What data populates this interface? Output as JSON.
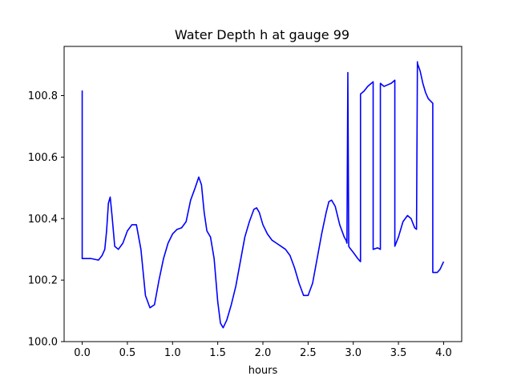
{
  "chart_data": {
    "type": "line",
    "title": "Water Depth h at gauge 99",
    "xlabel": "hours",
    "ylabel": "",
    "xlim": [
      -0.2,
      4.2
    ],
    "ylim": [
      100.0,
      100.96
    ],
    "grid": false,
    "x_ticks": [
      0.0,
      0.5,
      1.0,
      1.5,
      2.0,
      2.5,
      3.0,
      3.5,
      4.0
    ],
    "x_tick_labels": [
      "0.0",
      "0.5",
      "1.0",
      "1.5",
      "2.0",
      "2.5",
      "3.0",
      "3.5",
      "4.0"
    ],
    "y_ticks": [
      100.0,
      100.2,
      100.4,
      100.6,
      100.8
    ],
    "y_tick_labels": [
      "100.0",
      "100.2",
      "100.4",
      "100.6",
      "100.8"
    ],
    "series": [
      {
        "color": "#0000ff",
        "x": [
          0.0,
          0.0,
          0.0,
          0.1,
          0.18,
          0.22,
          0.25,
          0.27,
          0.29,
          0.31,
          0.33,
          0.36,
          0.4,
          0.45,
          0.5,
          0.55,
          0.6,
          0.65,
          0.7,
          0.75,
          0.8,
          0.85,
          0.9,
          0.95,
          1.0,
          1.05,
          1.1,
          1.15,
          1.2,
          1.25,
          1.29,
          1.32,
          1.35,
          1.38,
          1.42,
          1.46,
          1.5,
          1.53,
          1.56,
          1.6,
          1.65,
          1.7,
          1.75,
          1.8,
          1.85,
          1.9,
          1.93,
          1.96,
          2.0,
          2.05,
          2.1,
          2.15,
          2.2,
          2.25,
          2.3,
          2.35,
          2.4,
          2.45,
          2.5,
          2.55,
          2.6,
          2.65,
          2.7,
          2.73,
          2.76,
          2.8,
          2.85,
          2.9,
          2.92,
          2.93,
          2.94,
          2.94,
          2.95,
          2.96,
          3.0,
          3.05,
          3.08,
          3.08,
          3.12,
          3.16,
          3.2,
          3.22,
          3.22,
          3.27,
          3.3,
          3.3,
          3.34,
          3.38,
          3.42,
          3.46,
          3.46,
          3.5,
          3.55,
          3.6,
          3.64,
          3.68,
          3.7,
          3.71,
          3.71,
          3.74,
          3.77,
          3.8,
          3.83,
          3.88,
          3.88,
          3.9,
          3.93,
          3.96,
          4.0
        ],
        "values": [
          100.27,
          100.815,
          100.27,
          100.27,
          100.265,
          100.28,
          100.3,
          100.36,
          100.45,
          100.47,
          100.41,
          100.31,
          100.3,
          100.32,
          100.36,
          100.38,
          100.38,
          100.3,
          100.15,
          100.11,
          100.12,
          100.2,
          100.27,
          100.32,
          100.35,
          100.365,
          100.37,
          100.39,
          100.46,
          100.5,
          100.535,
          100.51,
          100.42,
          100.36,
          100.34,
          100.27,
          100.13,
          100.06,
          100.045,
          100.07,
          100.12,
          100.18,
          100.26,
          100.34,
          100.39,
          100.43,
          100.435,
          100.42,
          100.38,
          100.35,
          100.33,
          100.32,
          100.31,
          100.3,
          100.28,
          100.24,
          100.19,
          100.15,
          100.15,
          100.19,
          100.27,
          100.35,
          100.42,
          100.455,
          100.46,
          100.44,
          100.38,
          100.34,
          100.33,
          100.32,
          100.875,
          100.87,
          100.31,
          100.305,
          100.29,
          100.27,
          100.26,
          100.805,
          100.815,
          100.83,
          100.84,
          100.845,
          100.3,
          100.305,
          100.3,
          100.84,
          100.83,
          100.835,
          100.84,
          100.85,
          100.31,
          100.34,
          100.39,
          100.41,
          100.4,
          100.37,
          100.365,
          100.91,
          100.905,
          100.88,
          100.84,
          100.81,
          100.79,
          100.775,
          100.225,
          100.225,
          100.225,
          100.235,
          100.26
        ]
      }
    ]
  }
}
